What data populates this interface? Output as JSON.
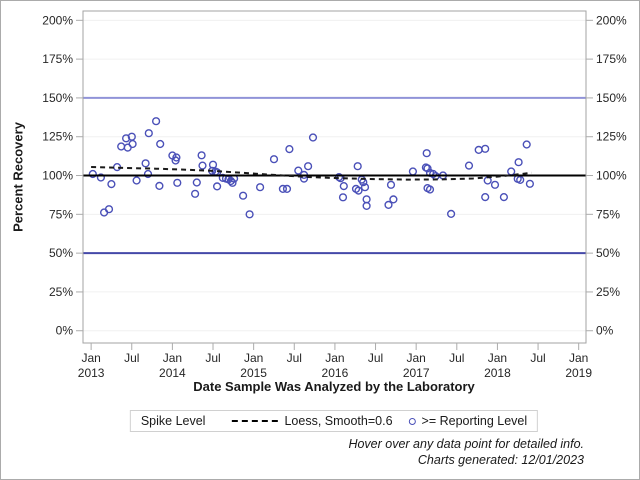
{
  "legend": {
    "title": "Spike Level",
    "loess_label": "Loess, Smooth=0.6",
    "points_label": ">= Reporting Level"
  },
  "footer": {
    "line1": "Hover over any data point for detailed info.",
    "line2": "Charts generated: 12/01/2023"
  },
  "colors": {
    "marker": "#4a50b8",
    "ref_150": "#9093d8",
    "ref_50": "#4448a8",
    "spike_line": "#000000",
    "loess_line": "#1a1a1a",
    "gridline": "#f0f0f0",
    "axis_border": "#a3a3a3",
    "tick": "#ababab",
    "text": "#262626"
  },
  "chart_data": {
    "type": "scatter",
    "title": "",
    "xlabel": "Date Sample Was Analyzed by the Laboratory",
    "ylabel": "Percent Recovery",
    "legend_position": "bottom",
    "grid": "horizontal-only",
    "x_axis": {
      "min": 2012.9,
      "max": 2019.09,
      "ticks": [
        {
          "v": 2013.0,
          "l1": "Jan",
          "l2": "2013"
        },
        {
          "v": 2013.5,
          "l1": "Jul",
          "l2": ""
        },
        {
          "v": 2014.0,
          "l1": "Jan",
          "l2": "2014"
        },
        {
          "v": 2014.5,
          "l1": "Jul",
          "l2": ""
        },
        {
          "v": 2015.0,
          "l1": "Jan",
          "l2": "2015"
        },
        {
          "v": 2015.5,
          "l1": "Jul",
          "l2": ""
        },
        {
          "v": 2016.0,
          "l1": "Jan",
          "l2": "2016"
        },
        {
          "v": 2016.5,
          "l1": "Jul",
          "l2": ""
        },
        {
          "v": 2017.0,
          "l1": "Jan",
          "l2": "2017"
        },
        {
          "v": 2017.5,
          "l1": "Jul",
          "l2": ""
        },
        {
          "v": 2018.0,
          "l1": "Jan",
          "l2": "2018"
        },
        {
          "v": 2018.5,
          "l1": "Jul",
          "l2": ""
        },
        {
          "v": 2019.0,
          "l1": "Jan",
          "l2": "2019"
        }
      ]
    },
    "y_axis": {
      "min": -7.9,
      "max": 206,
      "ticks": [
        {
          "v": 0,
          "label": "0%"
        },
        {
          "v": 25,
          "label": "25%"
        },
        {
          "v": 50,
          "label": "50%"
        },
        {
          "v": 75,
          "label": "75%"
        },
        {
          "v": 100,
          "label": "100%"
        },
        {
          "v": 125,
          "label": "125%"
        },
        {
          "v": 150,
          "label": "150%"
        },
        {
          "v": 175,
          "label": "175%"
        },
        {
          "v": 200,
          "label": "200%"
        }
      ]
    },
    "reference_lines": [
      {
        "name": "upper-limit",
        "value": 150,
        "color_key": "ref_150",
        "width": 2
      },
      {
        "name": "spike-level",
        "value": 100,
        "color_key": "spike_line",
        "width": 2
      },
      {
        "name": "lower-limit",
        "value": 50,
        "color_key": "ref_50",
        "width": 2
      }
    ],
    "series": [
      {
        "name": ">= Reporting Level",
        "type": "scatter",
        "marker": "open-circle",
        "points": [
          [
            2013.02,
            101
          ],
          [
            2013.12,
            98.7
          ],
          [
            2013.25,
            94.5
          ],
          [
            2013.16,
            76.2
          ],
          [
            2013.22,
            78.3
          ],
          [
            2013.32,
            105.4
          ],
          [
            2013.37,
            118.7
          ],
          [
            2013.43,
            124
          ],
          [
            2013.45,
            118
          ],
          [
            2013.5,
            125
          ],
          [
            2013.51,
            120.3
          ],
          [
            2013.56,
            96.8
          ],
          [
            2013.67,
            107.9
          ],
          [
            2013.7,
            101
          ],
          [
            2013.71,
            127.3
          ],
          [
            2013.8,
            135
          ],
          [
            2013.84,
            93.3
          ],
          [
            2013.85,
            120.3
          ],
          [
            2014.0,
            112.9
          ],
          [
            2014.04,
            109.7
          ],
          [
            2014.05,
            111.6
          ],
          [
            2014.06,
            95.3
          ],
          [
            2014.28,
            88.2
          ],
          [
            2014.3,
            95.5
          ],
          [
            2014.36,
            113
          ],
          [
            2014.37,
            106.4
          ],
          [
            2014.5,
            107
          ],
          [
            2014.49,
            103
          ],
          [
            2014.53,
            102.5
          ],
          [
            2014.55,
            102
          ],
          [
            2014.55,
            93
          ],
          [
            2014.62,
            98.5
          ],
          [
            2014.66,
            98
          ],
          [
            2014.69,
            97.5
          ],
          [
            2014.72,
            96.5
          ],
          [
            2014.76,
            98
          ],
          [
            2014.74,
            95.3
          ],
          [
            2014.87,
            87
          ],
          [
            2014.95,
            75
          ],
          [
            2015.08,
            92.5
          ],
          [
            2015.25,
            110.5
          ],
          [
            2015.36,
            91.4
          ],
          [
            2015.41,
            91.4
          ],
          [
            2015.44,
            117
          ],
          [
            2015.55,
            103.2
          ],
          [
            2015.62,
            100.4
          ],
          [
            2015.62,
            98
          ],
          [
            2015.67,
            106
          ],
          [
            2015.73,
            124.5
          ],
          [
            2016.05,
            99
          ],
          [
            2016.07,
            98.3
          ],
          [
            2016.1,
            86
          ],
          [
            2016.11,
            93.2
          ],
          [
            2016.28,
            106
          ],
          [
            2016.26,
            91.4
          ],
          [
            2016.29,
            90.3
          ],
          [
            2016.33,
            97.4
          ],
          [
            2016.35,
            95.7
          ],
          [
            2016.37,
            92.5
          ],
          [
            2016.39,
            84.7
          ],
          [
            2016.39,
            80.4
          ],
          [
            2016.66,
            81.1
          ],
          [
            2016.69,
            94
          ],
          [
            2016.72,
            84.6
          ],
          [
            2016.96,
            102.6
          ],
          [
            2017.13,
            114.4
          ],
          [
            2017.12,
            105.2
          ],
          [
            2017.14,
            104.6
          ],
          [
            2017.17,
            101.7
          ],
          [
            2017.21,
            101
          ],
          [
            2017.24,
            99.6
          ],
          [
            2017.33,
            100
          ],
          [
            2017.14,
            91.9
          ],
          [
            2017.17,
            91
          ],
          [
            2017.43,
            75.3
          ],
          [
            2017.65,
            106.4
          ],
          [
            2017.77,
            116.5
          ],
          [
            2017.85,
            117.2
          ],
          [
            2017.85,
            86.1
          ],
          [
            2017.88,
            96.8
          ],
          [
            2017.97,
            94
          ],
          [
            2018.08,
            86.1
          ],
          [
            2018.17,
            102.6
          ],
          [
            2018.26,
            108.6
          ],
          [
            2018.25,
            97.9
          ],
          [
            2018.28,
            97.2
          ],
          [
            2018.36,
            120
          ],
          [
            2018.4,
            94.7
          ]
        ]
      },
      {
        "name": "Loess, Smooth=0.6",
        "type": "line",
        "style": "dashed",
        "points": [
          [
            2013.0,
            105.5
          ],
          [
            2013.4,
            104.9
          ],
          [
            2013.8,
            104.4
          ],
          [
            2014.1,
            103.9
          ],
          [
            2014.5,
            103.0
          ],
          [
            2014.9,
            101.6
          ],
          [
            2015.3,
            100.2
          ],
          [
            2015.7,
            99.0
          ],
          [
            2016.1,
            98.2
          ],
          [
            2016.5,
            97.7
          ],
          [
            2016.9,
            97.4
          ],
          [
            2017.3,
            97.5
          ],
          [
            2017.7,
            98.1
          ],
          [
            2018.0,
            99.3
          ],
          [
            2018.2,
            100.4
          ],
          [
            2018.42,
            101.8
          ]
        ]
      }
    ]
  }
}
